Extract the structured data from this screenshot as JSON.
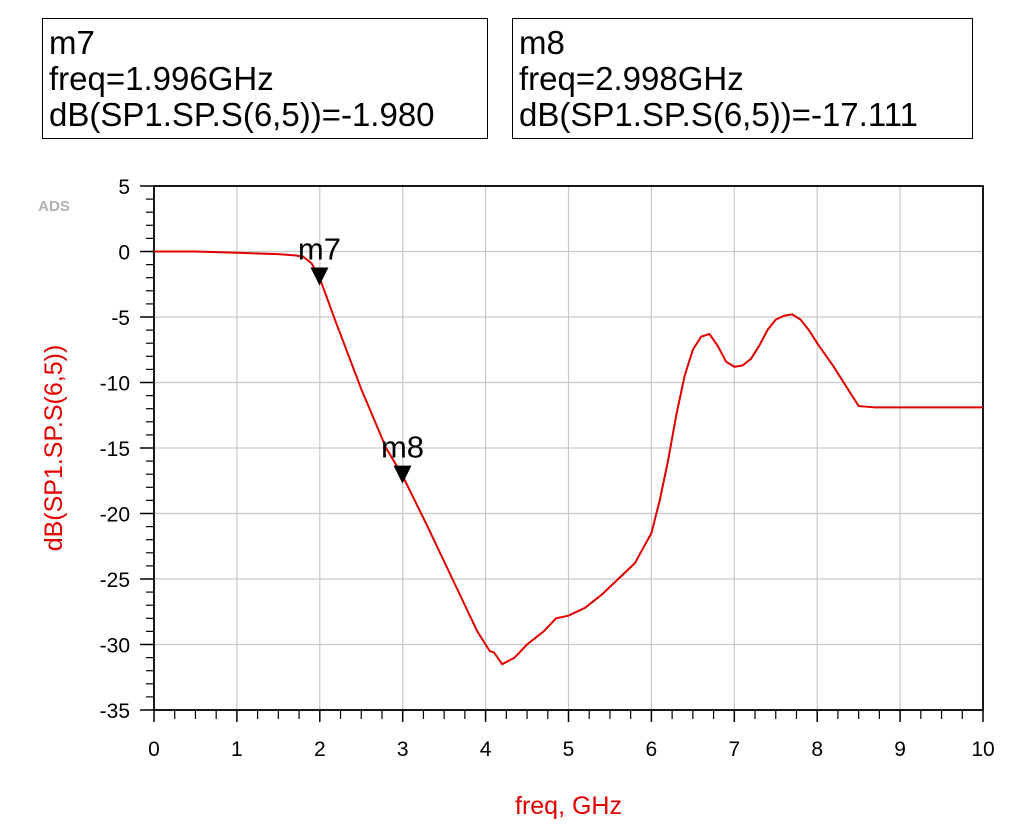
{
  "markers": [
    {
      "name": "m7",
      "freq_text": "freq=1.996GHz",
      "value_text": "dB(SP1.SP.S(6,5))=-1.980",
      "x": 1.996,
      "y": -1.98
    },
    {
      "name": "m8",
      "freq_text": "freq=2.998GHz",
      "value_text": "dB(SP1.SP.S(6,5))=-17.111",
      "x": 2.998,
      "y": -17.111
    }
  ],
  "watermark": "ADS",
  "chart_data": {
    "type": "line",
    "xlabel": "freq, GHz",
    "ylabel": "dB(SP1.SP.S(6,5))",
    "xlim": [
      0,
      10
    ],
    "ylim": [
      -35,
      5
    ],
    "xticks": [
      0,
      1,
      2,
      3,
      4,
      5,
      6,
      7,
      8,
      9,
      10
    ],
    "yticks": [
      5,
      0,
      -5,
      -10,
      -15,
      -20,
      -25,
      -30,
      -35
    ],
    "grid": true,
    "line_color": "#e00000",
    "series": [
      {
        "x": [
          0,
          0.5,
          1.0,
          1.5,
          1.7,
          1.8,
          1.9,
          1.996,
          2.2,
          2.5,
          2.8,
          2.998,
          3.3,
          3.6,
          3.9,
          4.05,
          4.1,
          4.2,
          4.35,
          4.5,
          4.7,
          4.85,
          5.0,
          5.2,
          5.4,
          5.6,
          5.8,
          6.0,
          6.1,
          6.2,
          6.3,
          6.4,
          6.5,
          6.6,
          6.7,
          6.8,
          6.9,
          7.0,
          7.1,
          7.2,
          7.3,
          7.4,
          7.5,
          7.6,
          7.7,
          7.8,
          7.9,
          8.0,
          8.2,
          8.4,
          8.5,
          8.7,
          9.0,
          9.5,
          10.0
        ],
        "y": [
          0,
          0,
          -0.1,
          -0.2,
          -0.3,
          -0.4,
          -0.9,
          -1.98,
          -5.5,
          -10.5,
          -15.0,
          -17.111,
          -21.0,
          -25.0,
          -29.0,
          -30.5,
          -30.6,
          -31.5,
          -31.0,
          -30.0,
          -29.0,
          -28.0,
          -27.8,
          -27.2,
          -26.2,
          -25.0,
          -23.8,
          -21.5,
          -19.0,
          -16.0,
          -12.5,
          -9.5,
          -7.5,
          -6.5,
          -6.3,
          -7.2,
          -8.4,
          -8.8,
          -8.7,
          -8.2,
          -7.2,
          -6.0,
          -5.2,
          -4.9,
          -4.8,
          -5.2,
          -6.0,
          -7.0,
          -8.8,
          -10.8,
          -11.8,
          -11.9,
          -11.9,
          -11.9,
          -11.9
        ]
      }
    ]
  }
}
